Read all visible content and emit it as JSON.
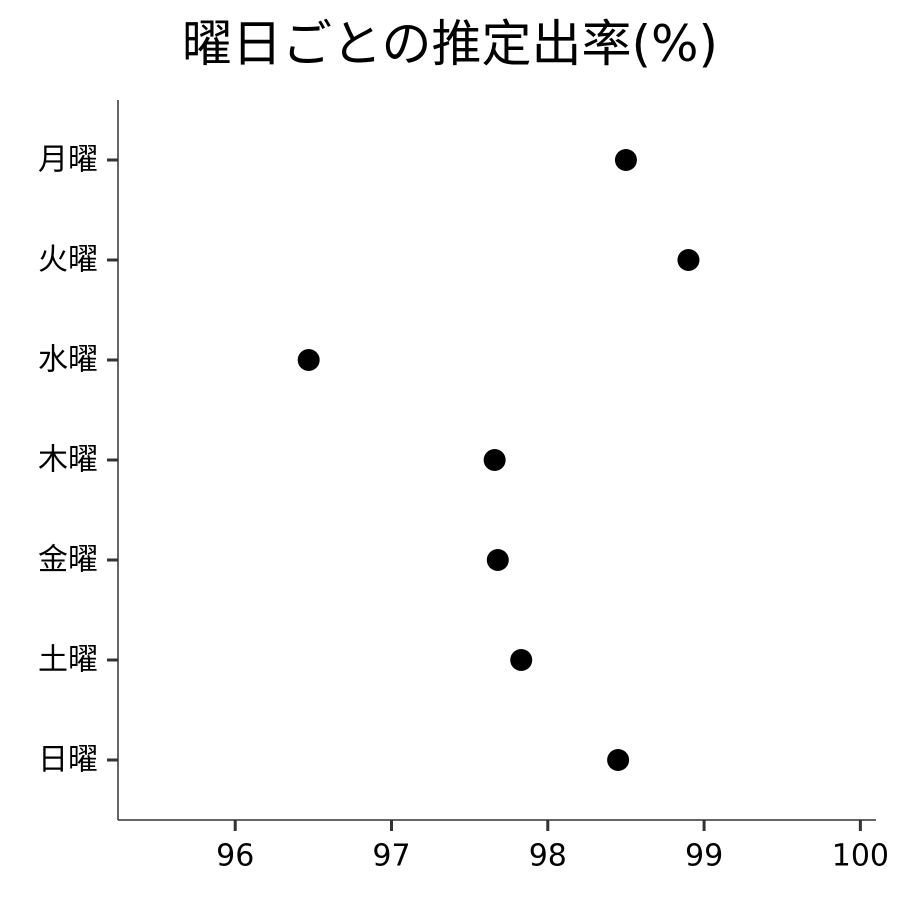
{
  "chart_data": {
    "type": "scatter",
    "title": "曜日ごとの推定出率(%)",
    "xlabel": "",
    "ylabel": "",
    "categories": [
      "月曜",
      "火曜",
      "水曜",
      "木曜",
      "金曜",
      "土曜",
      "日曜"
    ],
    "values": [
      98.5,
      98.9,
      96.47,
      97.66,
      97.68,
      97.83,
      98.45
    ],
    "xlim": [
      95.25,
      100.1
    ],
    "xticks": [
      96,
      97,
      98,
      99,
      100
    ],
    "grid": false,
    "legend": "none",
    "marker_color": "#000000",
    "axis_color": "#333333"
  }
}
